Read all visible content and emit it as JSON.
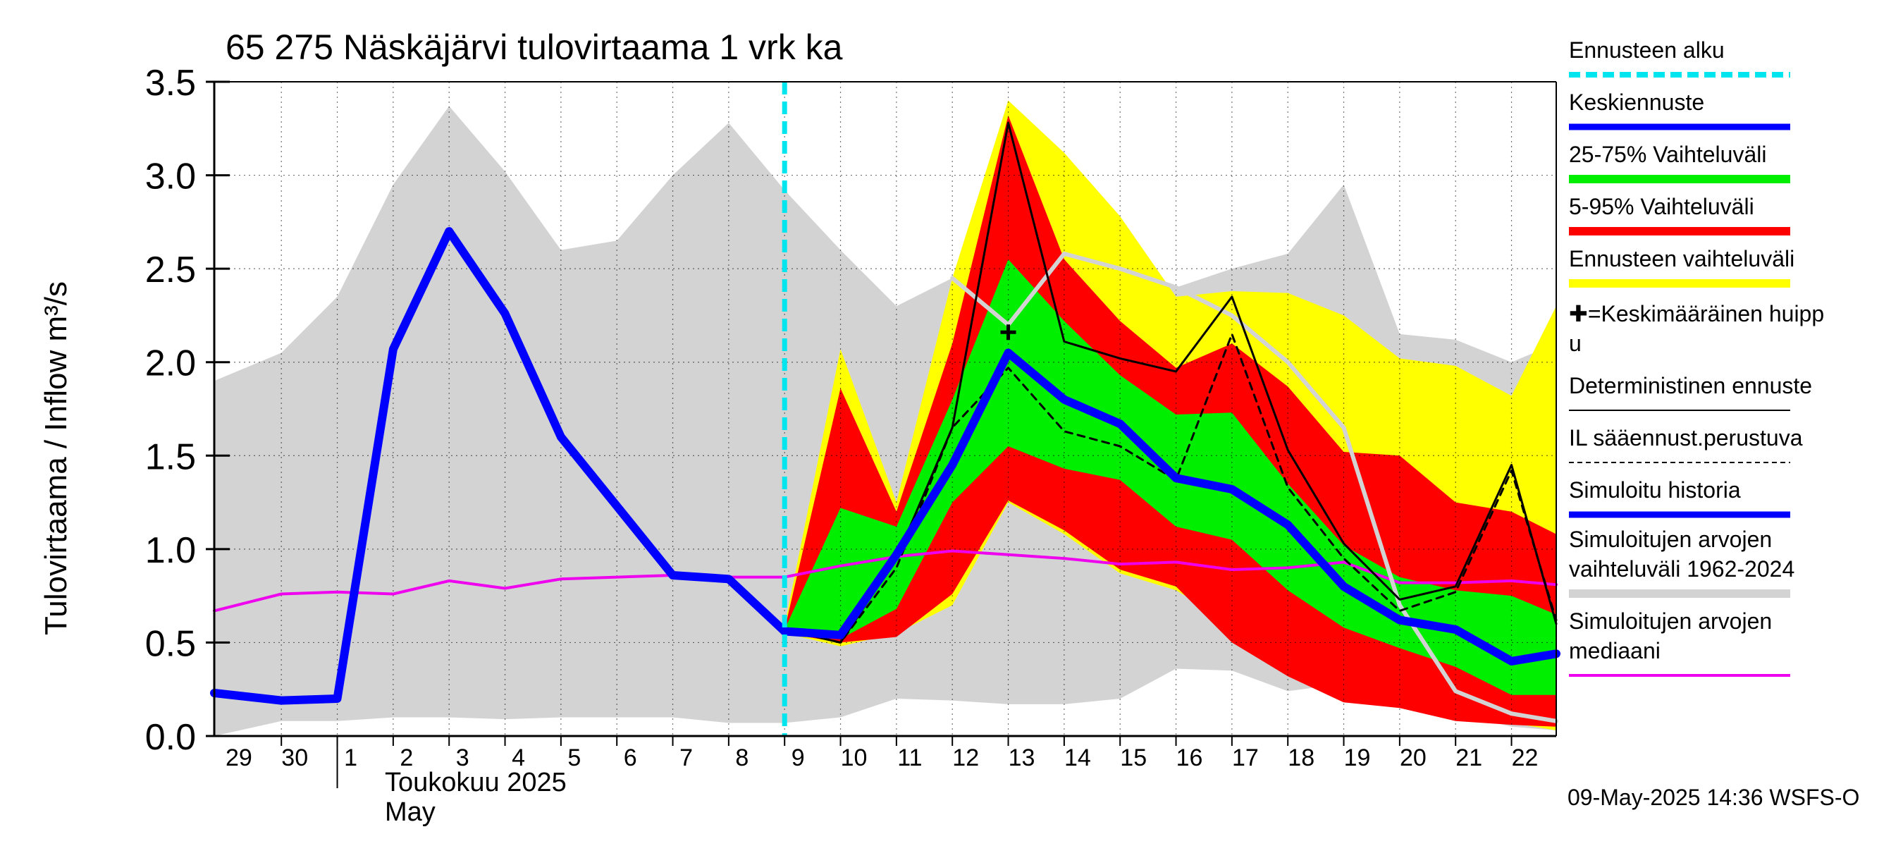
{
  "title": "65 275 Näskäjärvi tulovirtaama 1 vrk ka",
  "ylabel": "Tulovirtaama / Inflow    m³/s",
  "month_label": "Toukokuu  2025",
  "month_label_en": "May",
  "footer": "09-May-2025 14:36 WSFS-O",
  "colors": {
    "forecast_start": "#00e5ee",
    "mean_forecast": "#0000ff",
    "band_25_75": "#00ee00",
    "band_5_95": "#ff0000",
    "band_full": "#ffff00",
    "history_range": "#d3d3d3",
    "history_median": "#ee00ee",
    "deterministic": "#000000"
  },
  "legend": [
    {
      "label": "Ennusteen alku",
      "style": "dashed-cyan"
    },
    {
      "label": "Keskiennuste",
      "style": "blue"
    },
    {
      "label": "25-75% Vaihteluväli",
      "style": "green"
    },
    {
      "label": "5-95% Vaihteluväli",
      "style": "red"
    },
    {
      "label": "Ennusteen vaihteluväli",
      "style": "yellow"
    },
    {
      "label": "✚=Keskimääräinen huipp u",
      "style": "none"
    },
    {
      "label": "Deterministinen ennuste",
      "style": "black-thin"
    },
    {
      "label": "IL sääennust.perustuva",
      "style": "black-dashed"
    },
    {
      "label": "Simuloitu historia",
      "style": "blue"
    },
    {
      "label": "Simuloitujen arvojen vaihteluväli 1962-2024",
      "style": "gray"
    },
    {
      "label": "Simuloitujen arvojen mediaani",
      "style": "magenta"
    }
  ],
  "chart_data": {
    "type": "line",
    "ylim": [
      0,
      3.5
    ],
    "yticks": [
      "0.0",
      "0.5",
      "1.0",
      "1.5",
      "2.0",
      "2.5",
      "3.0",
      "3.5"
    ],
    "xlim": [
      -0.2,
      23.8
    ],
    "x_tick_labels": [
      "29",
      "30",
      "1",
      "2",
      "3",
      "4",
      "5",
      "6",
      "7",
      "8",
      "9",
      "10",
      "11",
      "12",
      "13",
      "14",
      "15",
      "16",
      "17",
      "18",
      "19",
      "20",
      "21",
      "22"
    ],
    "forecast_start_x": 10,
    "history_range": {
      "x": [
        -0.2,
        1,
        2,
        3,
        4,
        5,
        6,
        7,
        8,
        9,
        10,
        11,
        12,
        13,
        14,
        15,
        16,
        17,
        18,
        19,
        20,
        21,
        22,
        23,
        23.8
      ],
      "upper": [
        1.9,
        2.05,
        2.35,
        2.95,
        3.37,
        3.02,
        2.6,
        2.65,
        3.0,
        3.28,
        2.92,
        2.6,
        2.3,
        2.45,
        2.05,
        2.55,
        2.55,
        2.4,
        2.5,
        2.58,
        2.95,
        2.15,
        2.12,
        2.0,
        2.1
      ],
      "lower": [
        0.0,
        0.08,
        0.08,
        0.1,
        0.1,
        0.09,
        0.1,
        0.1,
        0.1,
        0.07,
        0.07,
        0.1,
        0.2,
        0.19,
        0.17,
        0.17,
        0.2,
        0.36,
        0.35,
        0.24,
        0.28,
        0.2,
        0.12,
        0.05,
        0.03
      ]
    },
    "history_median": {
      "x": [
        -0.2,
        1,
        2,
        3,
        4,
        5,
        6,
        7,
        8,
        9,
        10,
        11,
        12,
        13,
        14,
        15,
        16,
        17,
        18,
        19,
        20,
        21,
        22,
        23,
        23.8
      ],
      "values": [
        0.67,
        0.76,
        0.77,
        0.76,
        0.83,
        0.79,
        0.84,
        0.85,
        0.86,
        0.85,
        0.85,
        0.91,
        0.96,
        0.99,
        0.97,
        0.95,
        0.92,
        0.93,
        0.89,
        0.9,
        0.93,
        0.82,
        0.82,
        0.83,
        0.81
      ]
    },
    "history_sim": {
      "x": [
        -0.2,
        1,
        2,
        3,
        4,
        5,
        6,
        7,
        8,
        9,
        10
      ],
      "values": [
        0.23,
        0.19,
        0.2,
        2.07,
        2.7,
        2.26,
        1.6,
        1.23,
        0.86,
        0.84,
        0.56
      ]
    },
    "gray_member": {
      "x": [
        13,
        14,
        15,
        16,
        17,
        18,
        19,
        20,
        21,
        22,
        23,
        23.8
      ],
      "values": [
        2.45,
        2.2,
        2.58,
        2.5,
        2.4,
        2.25,
        2.0,
        1.65,
        0.7,
        0.24,
        0.12,
        0.08
      ],
      "tail": [
        2.1
      ]
    },
    "band_full": {
      "x": [
        10,
        11,
        12,
        13,
        14,
        15,
        16,
        17,
        18,
        19,
        20,
        21,
        22,
        23,
        23.8
      ],
      "upper": [
        0.59,
        2.07,
        1.25,
        2.45,
        3.4,
        3.12,
        2.78,
        2.35,
        2.38,
        2.37,
        2.25,
        2.02,
        1.98,
        1.82,
        2.3
      ],
      "lower": [
        0.55,
        0.48,
        0.55,
        0.7,
        1.25,
        1.08,
        0.87,
        0.78,
        0.6,
        0.4,
        0.27,
        0.16,
        0.12,
        0.07,
        0.03
      ]
    },
    "band_5_95": {
      "x": [
        10,
        11,
        12,
        13,
        14,
        15,
        16,
        17,
        18,
        19,
        20,
        21,
        22,
        23,
        23.8
      ],
      "upper": [
        0.57,
        1.86,
        1.2,
        2.1,
        3.32,
        2.55,
        2.22,
        1.97,
        2.1,
        1.87,
        1.52,
        1.5,
        1.25,
        1.2,
        1.08
      ],
      "lower": [
        0.55,
        0.5,
        0.53,
        0.76,
        1.26,
        1.1,
        0.89,
        0.8,
        0.5,
        0.32,
        0.18,
        0.15,
        0.08,
        0.06,
        0.05
      ]
    },
    "band_25_75": {
      "x": [
        10,
        11,
        12,
        13,
        14,
        15,
        16,
        17,
        18,
        19,
        20,
        21,
        22,
        23,
        23.8
      ],
      "upper": [
        0.57,
        1.22,
        1.12,
        1.8,
        2.55,
        2.22,
        1.93,
        1.72,
        1.73,
        1.35,
        1.02,
        0.85,
        0.78,
        0.75,
        0.65
      ],
      "lower": [
        0.55,
        0.52,
        0.68,
        1.25,
        1.55,
        1.43,
        1.37,
        1.12,
        1.05,
        0.78,
        0.58,
        0.47,
        0.37,
        0.22,
        0.22
      ]
    },
    "mean_forecast": {
      "x": [
        10,
        11,
        12,
        13,
        14,
        15,
        16,
        17,
        18,
        19,
        20,
        21,
        22,
        23,
        23.8
      ],
      "values": [
        0.56,
        0.54,
        0.97,
        1.45,
        2.05,
        1.8,
        1.67,
        1.38,
        1.32,
        1.13,
        0.8,
        0.62,
        0.57,
        0.4,
        0.44
      ]
    },
    "deterministic": {
      "x": [
        10,
        11,
        12,
        13,
        14,
        15,
        16,
        17,
        18,
        19,
        20,
        21,
        22,
        23,
        23.8
      ],
      "values": [
        0.57,
        0.5,
        0.95,
        1.65,
        3.28,
        2.11,
        2.02,
        1.95,
        2.35,
        1.53,
        1.03,
        0.73,
        0.8,
        1.45,
        0.6
      ]
    },
    "il_forecast": {
      "x": [
        10,
        11,
        12,
        13,
        14,
        15,
        16,
        17,
        18,
        19,
        20,
        21,
        22,
        23,
        23.8
      ],
      "values": [
        0.57,
        0.5,
        0.9,
        1.65,
        1.97,
        1.63,
        1.55,
        1.37,
        2.15,
        1.33,
        0.95,
        0.67,
        0.77,
        1.42,
        0.62
      ]
    },
    "mean_peak": {
      "x": 14,
      "y": 2.16
    }
  }
}
